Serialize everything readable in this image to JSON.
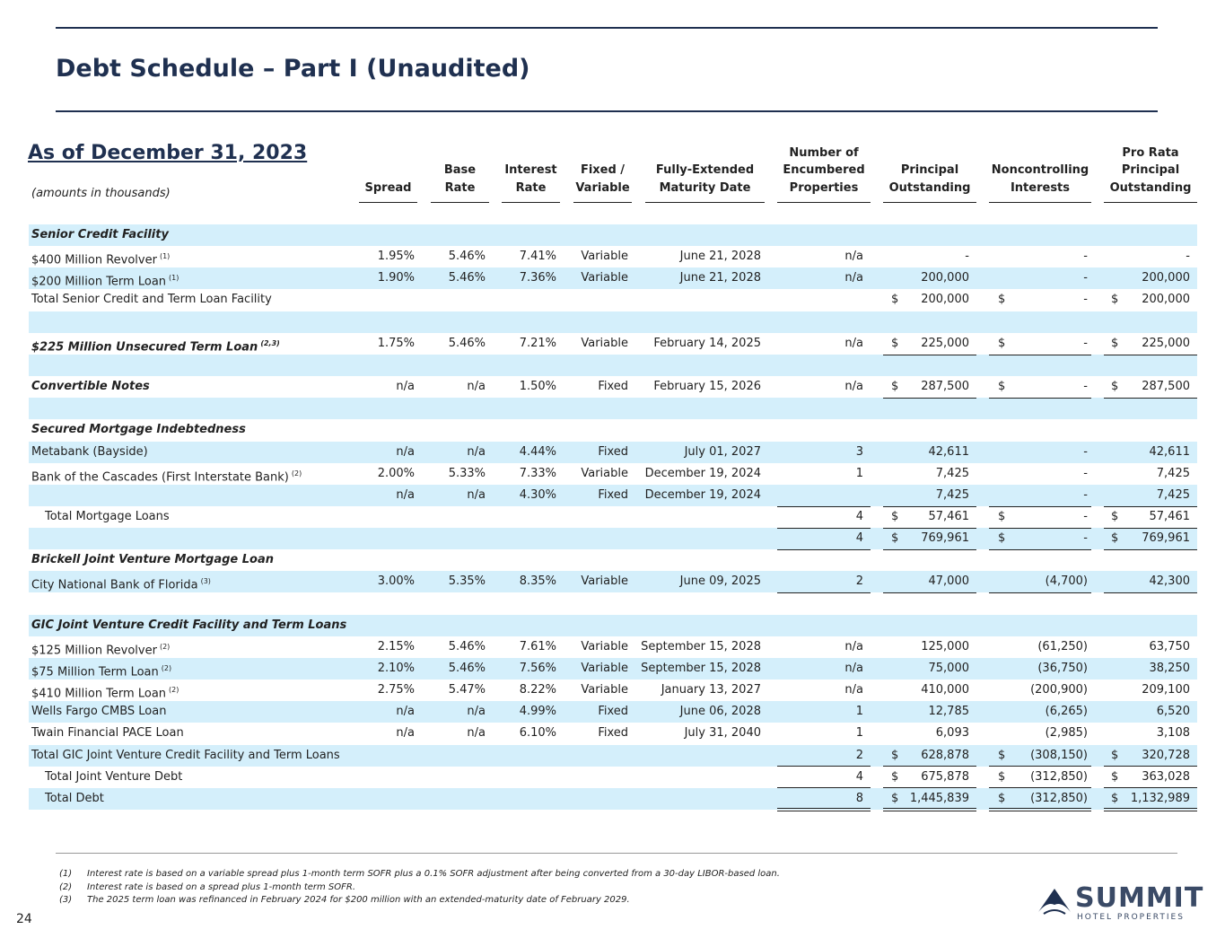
{
  "header": {
    "title": "Debt Schedule – Part I (Unaudited)",
    "as_of": "As of December 31, 2023",
    "units": "(amounts in thousands)"
  },
  "table": {
    "columns": [
      "Spread",
      "Base\nRate",
      "Interest\nRate",
      "Fixed /\nVariable",
      "Fully-Extended\nMaturity Date",
      "Number of\nEncumbered\nProperties",
      "Principal\nOutstanding",
      "Noncontrolling\nInterests",
      "Pro Rata\nPrincipal\nOutstanding"
    ],
    "rows": [
      [
        "Senior Credit Facility"
      ],
      [
        "$400 Million Revolver",
        "(1)",
        "1.95%",
        "5.46%",
        "7.41%",
        "Variable",
        "June 21, 2028",
        "n/a",
        null,
        "-",
        null,
        "-",
        null,
        "-"
      ],
      [
        "$200 Million Term Loan",
        "(1)",
        "1.90%",
        "5.46%",
        "7.36%",
        "Variable",
        "June 21, 2028",
        "n/a",
        null,
        "200,000",
        null,
        "-",
        null,
        "200,000"
      ],
      [
        "Total Senior Credit and Term Loan Facility",
        null,
        null,
        null,
        null,
        null,
        null,
        null,
        "$",
        "200,000",
        "$",
        "-",
        "$",
        "200,000"
      ],
      [],
      [
        "$225 Million Unsecured Term Loan",
        "(2,3)",
        "1.75%",
        "5.46%",
        "7.21%",
        "Variable",
        "February 14, 2025",
        "n/a",
        "$",
        "225,000",
        "$",
        "-",
        "$",
        "225,000"
      ],
      [],
      [
        "Convertible Notes",
        null,
        "n/a",
        "n/a",
        "1.50%",
        "Fixed",
        "February 15, 2026",
        "n/a",
        "$",
        "287,500",
        "$",
        "-",
        "$",
        "287,500"
      ],
      [],
      [
        "Secured Mortgage Indebtedness"
      ],
      [
        "Metabank (Bayside)",
        null,
        "n/a",
        "n/a",
        "4.44%",
        "Fixed",
        "July 01, 2027",
        "3",
        null,
        "42,611",
        null,
        "-",
        null,
        "42,611"
      ],
      [
        "Bank of the Cascades (First Interstate Bank)",
        "(2)",
        "2.00%",
        "5.33%",
        "7.33%",
        "Variable",
        "December 19, 2024",
        "1",
        null,
        "7,425",
        null,
        "-",
        null,
        "7,425"
      ],
      [
        null,
        null,
        "n/a",
        "n/a",
        "4.30%",
        "Fixed",
        "December 19, 2024",
        null,
        null,
        "7,425",
        null,
        "-",
        null,
        "7,425"
      ],
      [
        "Total Mortgage Loans",
        null,
        null,
        null,
        null,
        null,
        null,
        "4",
        "$",
        "57,461",
        "$",
        "-",
        "$",
        "57,461"
      ],
      [
        null,
        null,
        null,
        null,
        null,
        null,
        null,
        "4",
        "$",
        "769,961",
        "$",
        "-",
        "$",
        "769,961"
      ],
      [
        "Brickell Joint Venture Mortgage Loan"
      ],
      [
        "City National Bank of Florida",
        "(3)",
        "3.00%",
        "5.35%",
        "8.35%",
        "Variable",
        "June 09, 2025",
        "2",
        null,
        "47,000",
        null,
        "(4,700)",
        null,
        "42,300"
      ],
      [],
      [
        "GIC Joint Venture Credit Facility and Term Loans"
      ],
      [
        "$125 Million Revolver",
        "(2)",
        "2.15%",
        "5.46%",
        "7.61%",
        "Variable",
        "September 15, 2028",
        "n/a",
        null,
        "125,000",
        null,
        "(61,250)",
        null,
        "63,750"
      ],
      [
        "$75 Million Term Loan",
        "(2)",
        "2.10%",
        "5.46%",
        "7.56%",
        "Variable",
        "September 15, 2028",
        "n/a",
        null,
        "75,000",
        null,
        "(36,750)",
        null,
        "38,250"
      ],
      [
        "$410 Million Term Loan",
        "(2)",
        "2.75%",
        "5.47%",
        "8.22%",
        "Variable",
        "January 13, 2027",
        "n/a",
        null,
        "410,000",
        null,
        "(200,900)",
        null,
        "209,100"
      ],
      [
        "Wells Fargo CMBS Loan",
        null,
        "n/a",
        "n/a",
        "4.99%",
        "Fixed",
        "June 06, 2028",
        "1",
        null,
        "12,785",
        null,
        "(6,265)",
        null,
        "6,520"
      ],
      [
        "Twain Financial PACE Loan",
        null,
        "n/a",
        "n/a",
        "6.10%",
        "Fixed",
        "July 31, 2040",
        "1",
        null,
        "6,093",
        null,
        "(2,985)",
        null,
        "3,108"
      ],
      [
        "Total GIC Joint Venture Credit Facility and Term Loans",
        null,
        null,
        null,
        null,
        null,
        null,
        "2",
        "$",
        "628,878",
        "$",
        "(308,150)",
        "$",
        "320,728"
      ],
      [
        "Total Joint Venture Debt",
        null,
        null,
        null,
        null,
        null,
        null,
        "4",
        "$",
        "675,878",
        "$",
        "(312,850)",
        "$",
        "363,028"
      ],
      [
        "Total Debt",
        null,
        null,
        null,
        null,
        null,
        null,
        "8",
        "$",
        "1,445,839",
        "$",
        "(312,850)",
        "$",
        "1,132,989"
      ]
    ]
  },
  "footnotes": [
    [
      "(1)",
      "Interest rate is based on a variable spread plus 1-month term SOFR plus a 0.1% SOFR adjustment after being converted from a 30-day LIBOR-based loan."
    ],
    [
      "(2)",
      "Interest rate is based on a spread plus 1-month term SOFR."
    ],
    [
      "(3)",
      "The 2025 term loan was refinanced in February 2024 for $200 million with an extended-maturity date of February 2029."
    ]
  ],
  "logo": {
    "name": "SUMMIT",
    "tagline": "HOTEL PROPERTIES"
  },
  "page_number": "24"
}
